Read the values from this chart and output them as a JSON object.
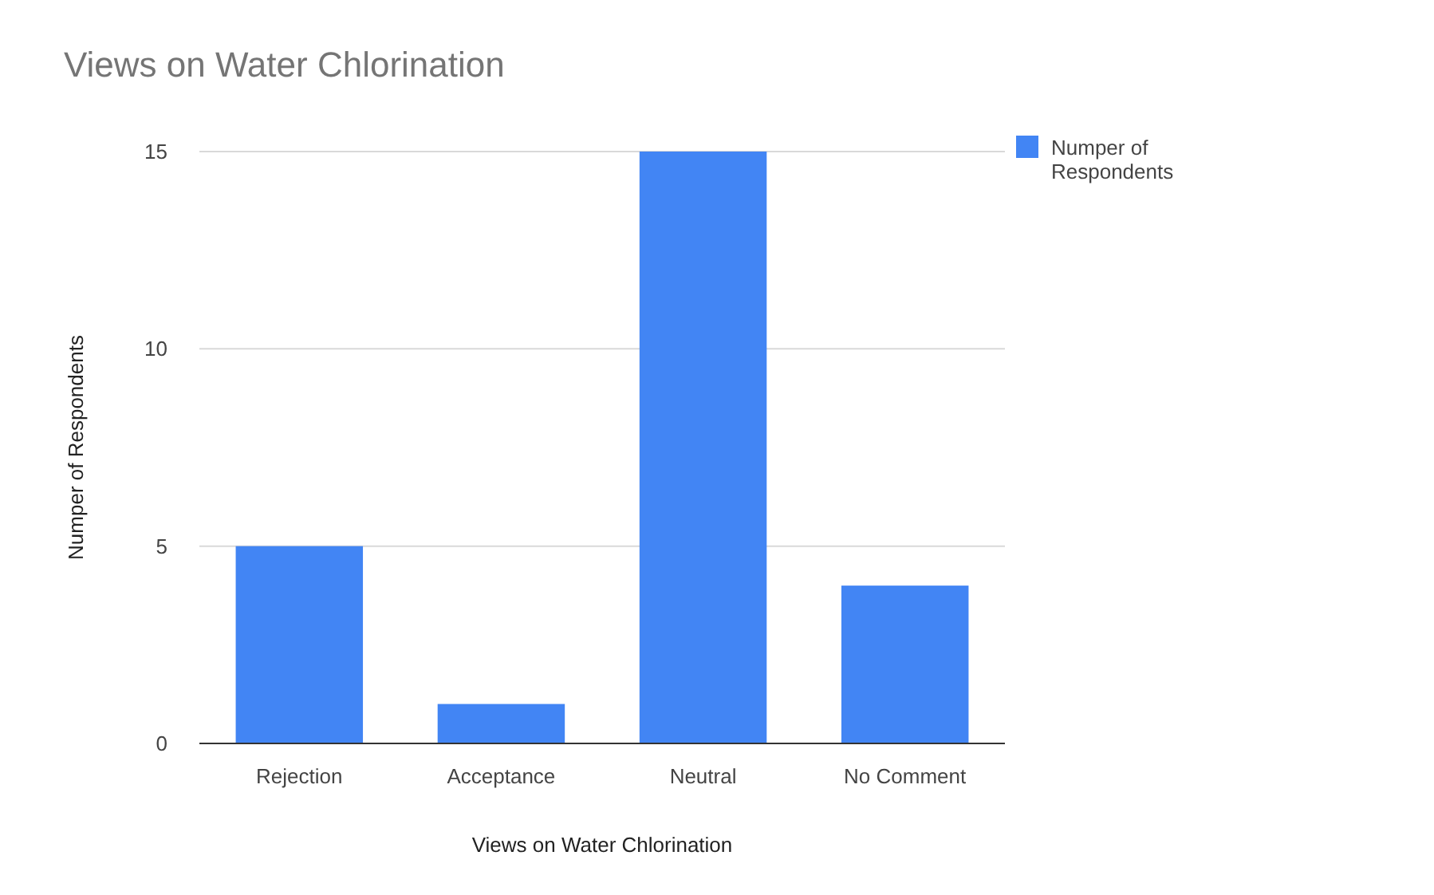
{
  "chart_data": {
    "type": "bar",
    "title": "Views on Water Chlorination",
    "xlabel": "Views on Water Chlorination",
    "ylabel": "Numper of Respondents",
    "categories": [
      "Rejection",
      "Acceptance",
      "Neutral",
      "No Comment"
    ],
    "series": [
      {
        "name": "Numper of Respondents",
        "color": "#4285f4",
        "values": [
          5,
          1,
          15,
          4
        ]
      }
    ],
    "ylim": [
      0,
      15
    ],
    "yticks": [
      0,
      5,
      10,
      15
    ],
    "grid": "y",
    "legend": "top right"
  }
}
